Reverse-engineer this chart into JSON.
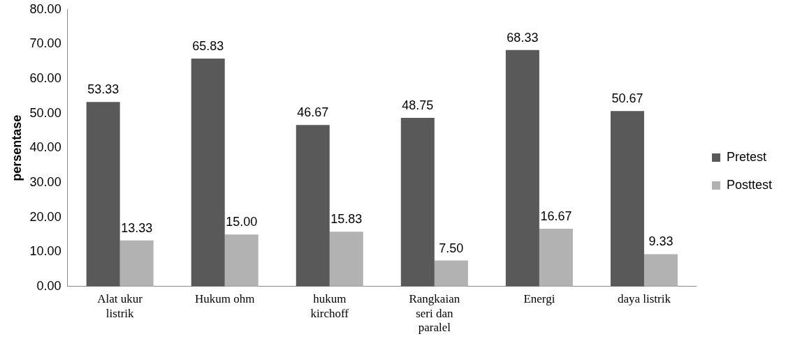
{
  "chart_data": {
    "type": "bar",
    "ylabel": "persentase",
    "categories": [
      "Alat ukur listrik",
      "Hukum ohm",
      "hukum kirchoff",
      "Rangkaian seri dan paralel",
      "Energi",
      "daya listrik"
    ],
    "series": [
      {
        "name": "Pretest",
        "color": "#595959",
        "values": [
          53.33,
          65.83,
          46.67,
          48.75,
          68.33,
          50.67
        ],
        "value_labels": [
          "53.33",
          "65.83",
          "46.67",
          "48.75",
          "68.33",
          "50.67"
        ]
      },
      {
        "name": "Posttest",
        "color": "#b2b2b2",
        "values": [
          13.33,
          15.0,
          15.83,
          7.5,
          16.67,
          9.33
        ],
        "value_labels": [
          "13.33",
          "15.00",
          "15.83",
          "7.50",
          "16.67",
          "9.33"
        ]
      }
    ],
    "ylim": [
      0,
      80
    ],
    "yticks": [
      {
        "value": 0,
        "label": "0.00"
      },
      {
        "value": 10,
        "label": "10.00"
      },
      {
        "value": 20,
        "label": "20.00"
      },
      {
        "value": 30,
        "label": "30.00"
      },
      {
        "value": 40,
        "label": "40.00"
      },
      {
        "value": 50,
        "label": "50.00"
      },
      {
        "value": 60,
        "label": "60.00"
      },
      {
        "value": 70,
        "label": "70.00"
      },
      {
        "value": 80,
        "label": "80.00"
      }
    ],
    "grid": false,
    "legend": "right"
  }
}
